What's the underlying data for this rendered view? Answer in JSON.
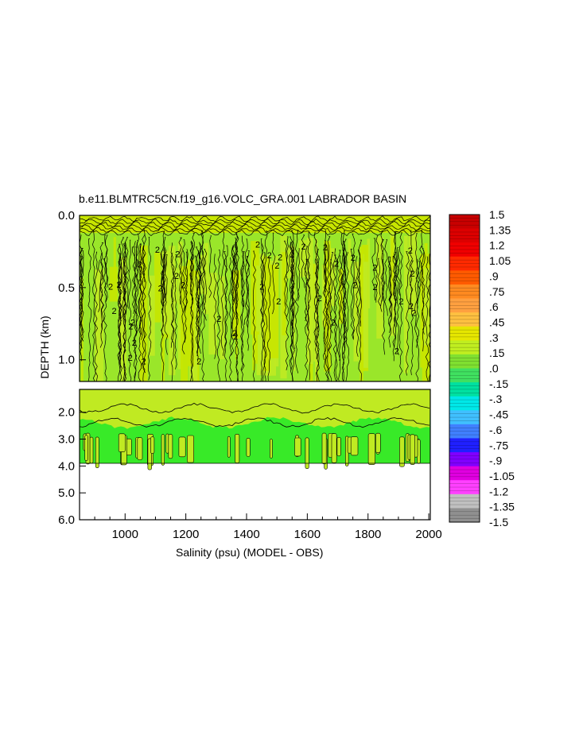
{
  "chart_data": {
    "type": "heatmap",
    "title": "b.e11.BLMTRC5CN.f19_g16.VOLC_GRA.001 LABRADOR BASIN",
    "xlabel": "Salinity (psu) (MODEL - OBS)",
    "ylabel": "DEPTH (km)",
    "xlim": [
      850,
      2005
    ],
    "x_ticks": [
      "1000",
      "1200",
      "1400",
      "1600",
      "1800",
      "2000"
    ],
    "x_tick_values": [
      1000,
      1200,
      1400,
      1600,
      1800,
      2000
    ],
    "upper_panel": {
      "ylim": [
        0.0,
        1.15
      ],
      "y_ticks": [
        "0.0",
        "0.5",
        "1.0"
      ],
      "y_tick_values": [
        0.0,
        0.5,
        1.0
      ]
    },
    "lower_panel": {
      "ylim": [
        1.15,
        6.0
      ],
      "y_ticks": [
        "2.0",
        "3.0",
        "4.0",
        "5.0",
        "6.0"
      ],
      "y_tick_values": [
        2.0,
        3.0,
        4.0,
        5.0,
        6.0
      ],
      "data_bottom_depth": 3.9
    },
    "contour_labels": [
      "2"
    ],
    "colorbar": {
      "labels": [
        "1.5",
        "1.35",
        "1.2",
        "1.05",
        ".9",
        ".75",
        ".6",
        ".45",
        ".3",
        ".15",
        ".0",
        "-.15",
        "-.3",
        "-.45",
        "-.6",
        "-.75",
        "-.9",
        "-1.05",
        "-1.2",
        "-1.35",
        "-1.5"
      ],
      "colors": [
        "#c80000",
        "#dc0000",
        "#f00000",
        "#ff2a00",
        "#ff5a00",
        "#ff8a20",
        "#ffa040",
        "#ffc040",
        "#e6e600",
        "#c0ee20",
        "#80e030",
        "#40e060",
        "#00e0a0",
        "#00e8e8",
        "#40c0ff",
        "#4080ff",
        "#2020ff",
        "#8000ff",
        "#e000e0",
        "#ff40ff",
        "#c0c0c0",
        "#909090"
      ]
    },
    "field_colors": {
      "surface": "#c8e600",
      "upper": "#9ae62a",
      "mid": "#c0ea22",
      "deep": "#38ea28",
      "lines": "#000000"
    }
  }
}
